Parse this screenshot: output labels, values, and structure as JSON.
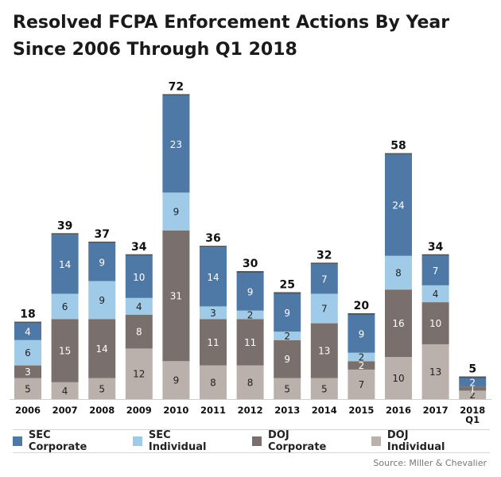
{
  "title": "Resolved FCPA Enforcement Actions By Year Since 2006 Through Q1 2018",
  "source": "Source: Miller & Chevalier",
  "colors": {
    "SEC Corporate": "#4e79a7",
    "SEC Individual": "#a0cbe8",
    "DOJ Corporate": "#79706e",
    "DOJ Individual": "#bab0ac"
  },
  "chart_data": {
    "type": "bar",
    "stacked": true,
    "title": "Resolved FCPA Enforcement Actions By Year Since 2006 Through Q1 2018",
    "categories": [
      "2006",
      "2007",
      "2008",
      "2009",
      "2010",
      "2011",
      "2012",
      "2013",
      "2014",
      "2015",
      "2016",
      "2017",
      "2018 Q1"
    ],
    "series": [
      {
        "name": "DOJ Individual",
        "values": [
          5,
          4,
          5,
          12,
          9,
          8,
          8,
          5,
          5,
          7,
          10,
          13,
          2
        ]
      },
      {
        "name": "DOJ Corporate",
        "values": [
          3,
          15,
          14,
          8,
          31,
          11,
          11,
          9,
          13,
          2,
          16,
          10,
          1
        ]
      },
      {
        "name": "SEC Individual",
        "values": [
          6,
          6,
          9,
          4,
          9,
          3,
          2,
          2,
          7,
          2,
          8,
          4,
          0
        ]
      },
      {
        "name": "SEC Corporate",
        "values": [
          4,
          14,
          9,
          10,
          23,
          14,
          9,
          9,
          7,
          9,
          24,
          7,
          2
        ]
      }
    ],
    "totals": [
      18,
      39,
      37,
      34,
      72,
      36,
      30,
      25,
      32,
      20,
      58,
      34,
      5
    ],
    "legend": [
      "SEC Corporate",
      "SEC Individual",
      "DOJ Corporate",
      "DOJ Individual"
    ],
    "legend_position": "bottom",
    "grid": false
  }
}
